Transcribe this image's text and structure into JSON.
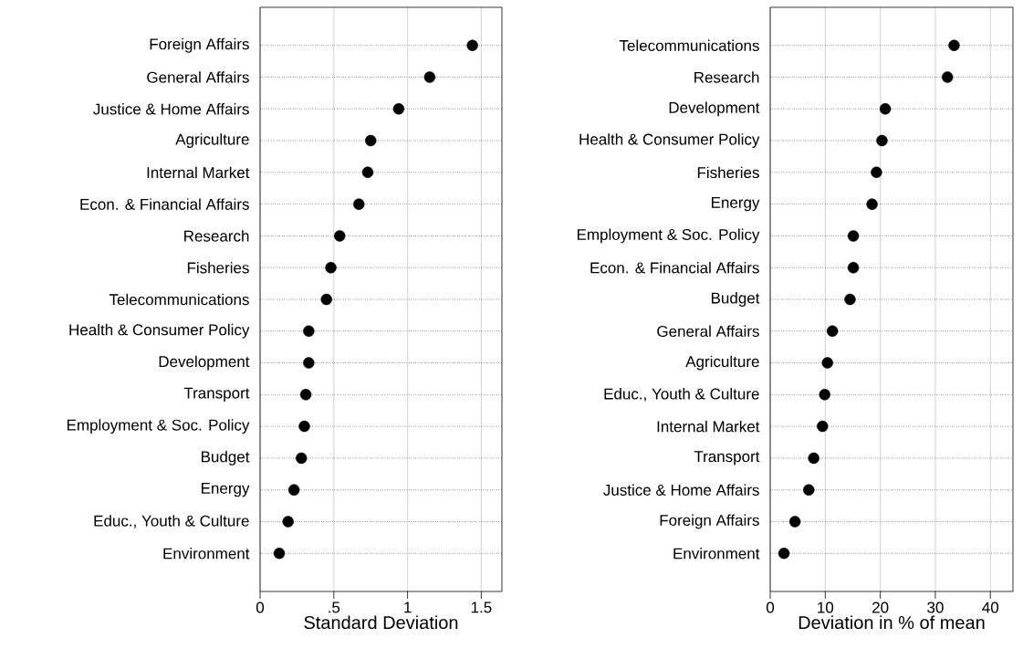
{
  "chart_data": [
    {
      "type": "scatter",
      "orientation": "horizontal",
      "categories": [
        "Foreign Affairs",
        "General Affairs",
        "Justice & Home Affairs",
        "Agriculture",
        "Internal Market",
        "Econ. & Financial Affairs",
        "Research",
        "Fisheries",
        "Telecommunications",
        "Health & Consumer Policy",
        "Development",
        "Transport",
        "Employment & Soc. Policy",
        "Budget",
        "Energy",
        "Educ., Youth & Culture",
        "Environment"
      ],
      "values": [
        1.44,
        1.15,
        0.94,
        0.75,
        0.73,
        0.67,
        0.54,
        0.48,
        0.45,
        0.33,
        0.33,
        0.31,
        0.3,
        0.28,
        0.23,
        0.19,
        0.13
      ],
      "color": "#000000",
      "marker": "circle",
      "grid": true,
      "xlabel": "Standard Deviation",
      "xlim": [
        0,
        1.64
      ],
      "xticks": [
        0,
        {
          "value": 0.5,
          "label": ".5"
        },
        1,
        1.5
      ]
    },
    {
      "type": "scatter",
      "orientation": "horizontal",
      "categories": [
        "Telecommunications",
        "Research",
        "Development",
        "Health & Consumer Policy",
        "Fisheries",
        "Energy",
        "Employment & Soc. Policy",
        "Econ. & Financial Affairs",
        "Budget",
        "General Affairs",
        "Agriculture",
        "Educ., Youth & Culture",
        "Internal Market",
        "Transport",
        "Justice & Home Affairs",
        "Foreign Affairs",
        "Environment"
      ],
      "values": [
        33.4,
        32.2,
        20.9,
        20.3,
        19.3,
        18.5,
        15.1,
        15.1,
        14.5,
        11.3,
        10.4,
        9.9,
        9.5,
        7.9,
        7.0,
        4.5,
        2.5
      ],
      "color": "#000000",
      "marker": "circle",
      "grid": true,
      "xlabel": "Deviation in % of mean",
      "xlim": [
        0,
        44.1
      ],
      "xticks": [
        0,
        10,
        20,
        30,
        40
      ]
    }
  ]
}
